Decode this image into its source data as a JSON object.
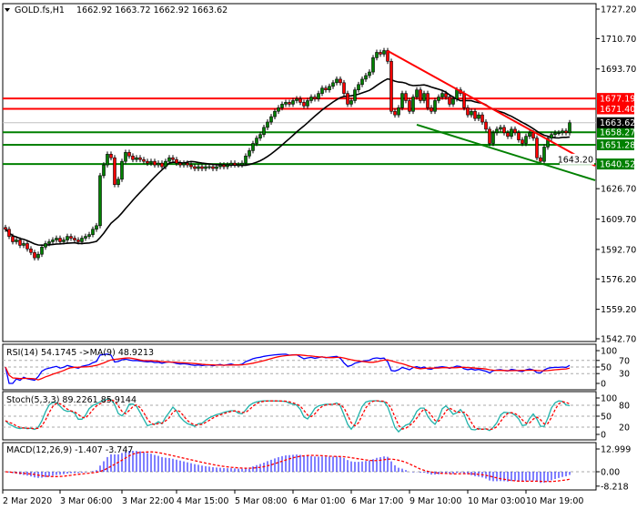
{
  "header": {
    "symbol": "GOLD.fs,H1",
    "ohlc": "1662.92 1663.72 1662.92 1663.62",
    "icon": "triangle-down-icon"
  },
  "colors": {
    "up": "#008000",
    "down": "#ff0000",
    "ma": "#000000",
    "resistance": "#ff0000",
    "support": "#008000",
    "bid": "#c0c0c0",
    "rsi": "#0000ff",
    "rsi_ma": "#ff0000",
    "stoch_main": "#20b2aa",
    "stoch_signal": "#ff0000",
    "macd_hist": "#0000ff",
    "macd_signal": "#ff0000"
  },
  "chart_data": [
    {
      "type": "candlestick",
      "ylim": [
        1542.7,
        1727.2
      ],
      "y_ticks": [
        "1727.20",
        "1710.70",
        "1693.70",
        "1643.20",
        "1626.70",
        "1609.70",
        "1592.70",
        "1576.20",
        "1559.20",
        "1542.70"
      ],
      "closes": [
        1604,
        1600,
        1597,
        1598,
        1595,
        1596,
        1593,
        1591,
        1588,
        1590,
        1594,
        1596,
        1597,
        1598,
        1599,
        1597,
        1598,
        1600,
        1599,
        1598,
        1597,
        1599,
        1600,
        1601,
        1604,
        1606,
        1634,
        1640,
        1646,
        1644,
        1629,
        1632,
        1642,
        1647,
        1645,
        1643,
        1644,
        1643,
        1642,
        1641,
        1642,
        1640,
        1641,
        1639,
        1642,
        1644,
        1643,
        1641,
        1640,
        1641,
        1640,
        1639,
        1638,
        1639,
        1638,
        1639,
        1639,
        1638,
        1639,
        1640,
        1639,
        1640,
        1641,
        1640,
        1640,
        1641,
        1645,
        1648,
        1652,
        1655,
        1657,
        1661,
        1664,
        1667,
        1670,
        1672,
        1674,
        1675,
        1674,
        1676,
        1677,
        1675,
        1673,
        1676,
        1678,
        1677,
        1680,
        1683,
        1682,
        1684,
        1686,
        1688,
        1686,
        1680,
        1674,
        1676,
        1682,
        1685,
        1688,
        1690,
        1692,
        1700,
        1703,
        1702,
        1704,
        1698,
        1670,
        1668,
        1672,
        1680,
        1676,
        1670,
        1678,
        1682,
        1676,
        1680,
        1672,
        1670,
        1676,
        1678,
        1680,
        1678,
        1674,
        1677,
        1682,
        1680,
        1672,
        1668,
        1670,
        1666,
        1668,
        1664,
        1660,
        1652,
        1658,
        1660,
        1661,
        1658,
        1656,
        1660,
        1658,
        1654,
        1652,
        1656,
        1658,
        1655,
        1644,
        1642,
        1650,
        1655,
        1657,
        1658,
        1658,
        1659,
        1658,
        1663.62
      ],
      "levels": [
        {
          "price": 1677.19,
          "label": "1677.19",
          "kind": "resistance"
        },
        {
          "price": 1671.4,
          "label": "1671.40",
          "kind": "resistance"
        },
        {
          "price": 1658.27,
          "label": "1658.27",
          "kind": "support"
        },
        {
          "price": 1651.28,
          "label": "1651.28",
          "kind": "support"
        },
        {
          "price": 1640.52,
          "label": "1640.52",
          "kind": "support"
        }
      ],
      "bid": {
        "price": 1663.62,
        "label": "1663.62"
      },
      "trendlines": [
        {
          "kind": "resistance",
          "from": {
            "bar": 105,
            "price": 1703.8
          },
          "to": {
            "bar": 162,
            "price": 1639.5
          }
        },
        {
          "kind": "support",
          "from": {
            "bar": 113,
            "price": 1662.5
          },
          "to": {
            "bar": 162,
            "price": 1631.4
          }
        }
      ],
      "x_ticks": [
        {
          "bar": -1,
          "label": "2 Mar 2020"
        },
        {
          "bar": 15,
          "label": "3 Mar 06:00"
        },
        {
          "bar": 32,
          "label": "3 Mar 22:00"
        },
        {
          "bar": 47,
          "label": "4 Mar 15:00"
        },
        {
          "bar": 63,
          "label": "5 Mar 08:00"
        },
        {
          "bar": 79,
          "label": "6 Mar 01:00"
        },
        {
          "bar": 95,
          "label": "6 Mar 17:00"
        },
        {
          "bar": 111,
          "label": "9 Mar 10:00"
        },
        {
          "bar": 127,
          "label": "10 Mar 03:00"
        },
        {
          "bar": 143,
          "label": "10 Mar 19:00"
        }
      ]
    },
    {
      "type": "line",
      "title": "RSI(14) 54.1745  ->MA(9) 48.9213",
      "ylim": [
        0,
        100
      ],
      "levels": [
        70,
        50,
        30
      ],
      "y_ticks": [
        "100",
        "70",
        "50",
        "30",
        "0"
      ]
    },
    {
      "type": "line",
      "title": "Stoch(5,3,3) 89.2261 85.9144",
      "ylim": [
        0,
        100
      ],
      "levels": [
        80,
        50,
        20
      ],
      "y_ticks": [
        "100",
        "80",
        "50",
        "20",
        "0"
      ]
    },
    {
      "type": "bar",
      "title": "MACD(12,26,9) -1.407 -3.747",
      "ylim": [
        -8.218,
        12.999
      ],
      "levels": [
        0
      ],
      "y_ticks": [
        "12.999",
        "0.00",
        "-8.218"
      ]
    }
  ]
}
